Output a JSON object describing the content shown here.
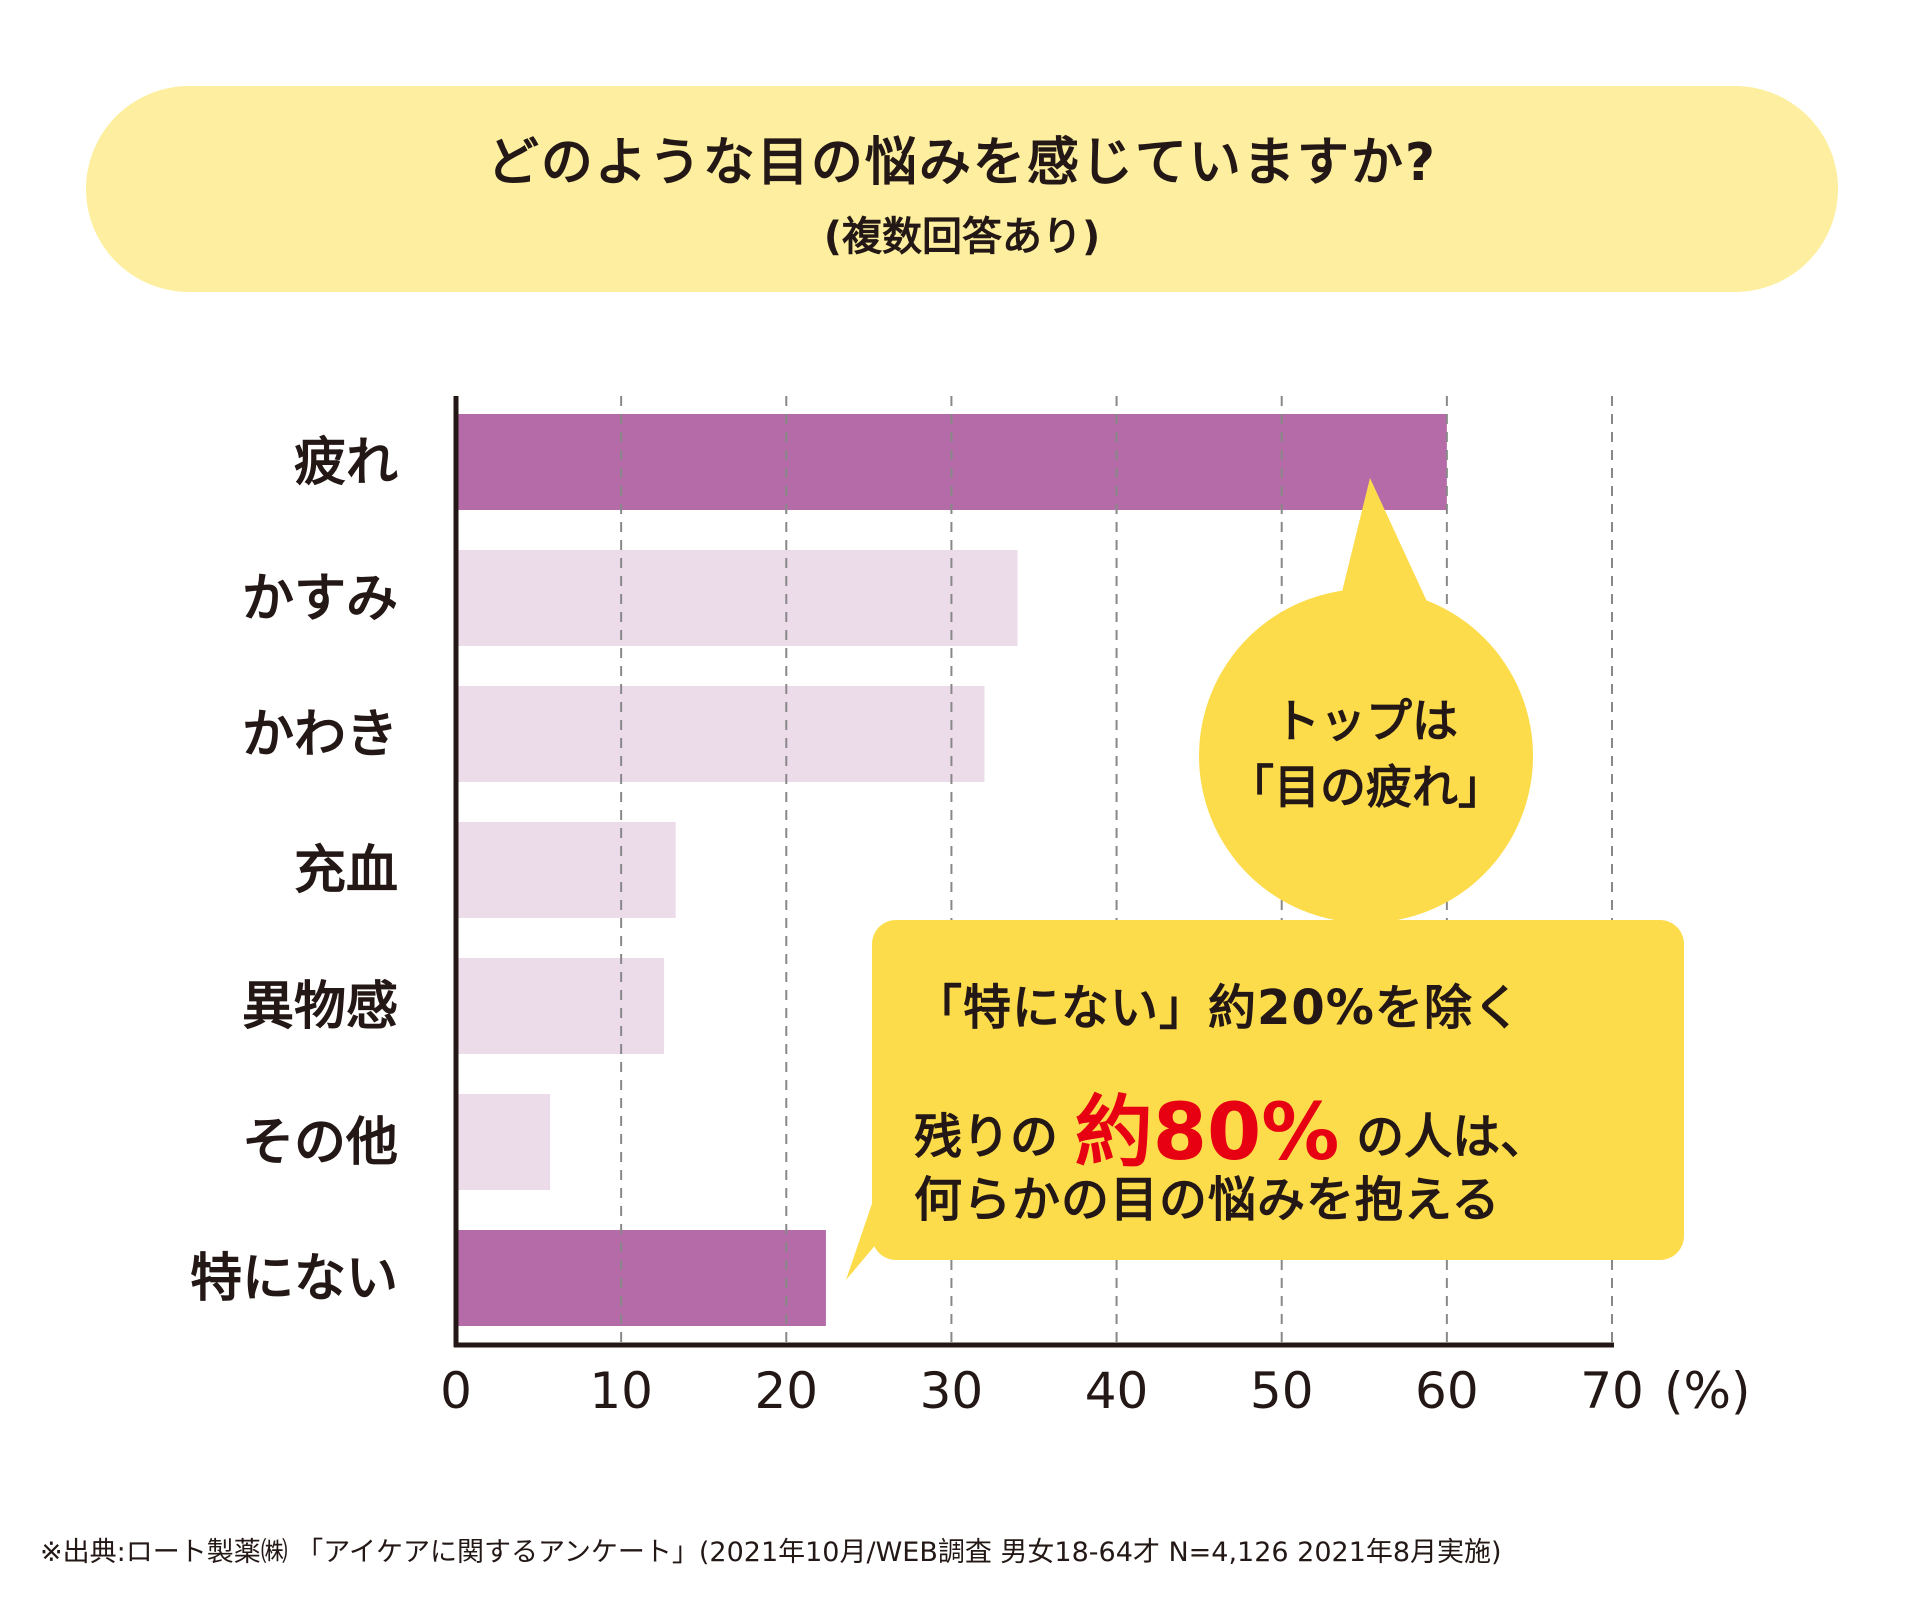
{
  "title": {
    "main": "どのような目の悩みを感じていますか?",
    "sub": "(複数回答あり)"
  },
  "chart_data": {
    "type": "bar",
    "orientation": "horizontal",
    "categories": [
      "疲れ",
      "かすみ",
      "かわき",
      "充血",
      "異物感",
      "その他",
      "特にない"
    ],
    "values": [
      60,
      34,
      32,
      13.3,
      12.6,
      5.7,
      22.4
    ],
    "highlighted": [
      true,
      false,
      false,
      false,
      false,
      false,
      true
    ],
    "xlim": [
      0,
      70
    ],
    "xticks": [
      "0",
      "10",
      "20",
      "30",
      "40",
      "50",
      "60",
      "70"
    ],
    "xunit": "(%)",
    "grid": "vertical dashed",
    "colors": {
      "highlight": "#b56ba8",
      "normal": "#ecdcea",
      "axis": "#231815",
      "grid": "#888888"
    }
  },
  "callout_circle": {
    "line1": "トップは",
    "line2": "「目の疲れ」",
    "color": "#fddc4b"
  },
  "callout_box": {
    "line1": "「特にない」約20%を除く",
    "line2_pre": "残りの ",
    "line2_em": "約80%",
    "line2_post": " の人は、",
    "line3": "何らかの目の悩みを抱える",
    "accent": "#e60012"
  },
  "source": "※出典:ロート製薬㈱ 「アイケアに関するアンケート」(2021年10月/WEB調査 男女18-64才 N=4,126 2021年8月実施)"
}
